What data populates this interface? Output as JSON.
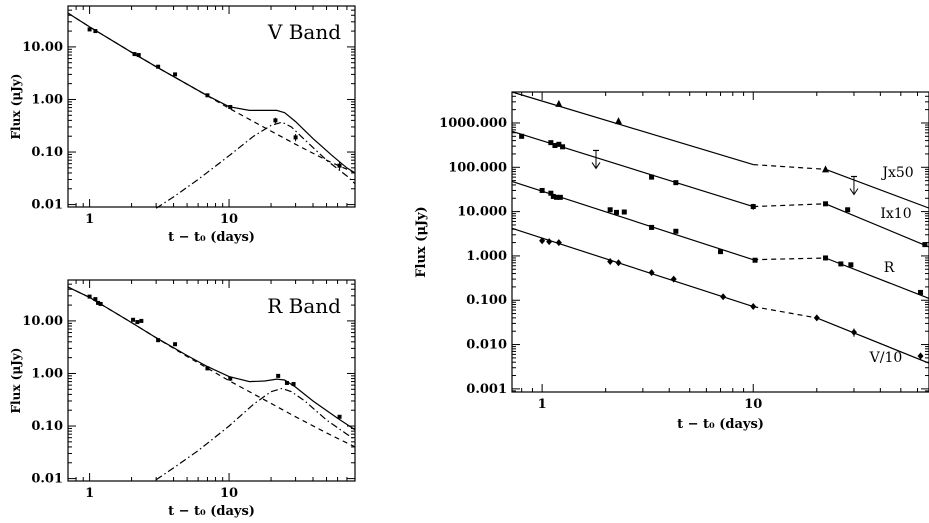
{
  "chart_data": [
    {
      "type": "line",
      "title": "V Band",
      "xlabel": "t − t₀ (days)",
      "ylabel": "Flux (μJy)",
      "xscale": "log",
      "yscale": "log",
      "xlim": [
        0.7,
        80
      ],
      "ylim": [
        0.009,
        60
      ],
      "xticks": [
        {
          "v": 1,
          "label": "1"
        },
        {
          "v": 10,
          "label": "10"
        }
      ],
      "yticks": [
        {
          "v": 0.01,
          "label": "0.01"
        },
        {
          "v": 0.1,
          "label": "0.10"
        },
        {
          "v": 1,
          "label": "1.00"
        },
        {
          "v": 10,
          "label": "10.00"
        }
      ],
      "points": [
        {
          "x": 1.0,
          "y": 21.5,
          "err": 0
        },
        {
          "x": 1.1,
          "y": 20.0,
          "err": 0
        },
        {
          "x": 2.1,
          "y": 7.3,
          "err": 0.4
        },
        {
          "x": 2.25,
          "y": 7.0,
          "err": 0.5
        },
        {
          "x": 3.1,
          "y": 4.2,
          "err": 0
        },
        {
          "x": 4.1,
          "y": 3.0,
          "err": 0
        },
        {
          "x": 7.0,
          "y": 1.2,
          "err": 0
        },
        {
          "x": 10.2,
          "y": 0.72,
          "err": 0.05
        },
        {
          "x": 21.5,
          "y": 0.4,
          "err": 0.05
        },
        {
          "x": 30.0,
          "y": 0.19,
          "err": 0.03
        },
        {
          "x": 62.0,
          "y": 0.055,
          "err": 0.01
        }
      ],
      "series": [
        {
          "name": "",
          "style": "solid",
          "values": [
            [
              0.7,
              44
            ],
            [
              1,
              24
            ],
            [
              2,
              7.9
            ],
            [
              3,
              4.2
            ],
            [
              5,
              1.95
            ],
            [
              7,
              1.18
            ],
            [
              10,
              0.73
            ],
            [
              14,
              0.62
            ],
            [
              18,
              0.62
            ],
            [
              22,
              0.62
            ],
            [
              25,
              0.56
            ],
            [
              30,
              0.38
            ],
            [
              40,
              0.18
            ],
            [
              55,
              0.085
            ],
            [
              70,
              0.05
            ],
            [
              80,
              0.04
            ]
          ]
        },
        {
          "name": "",
          "style": "dashed",
          "values": [
            [
              0.7,
              44
            ],
            [
              1,
              24
            ],
            [
              2,
              7.9
            ],
            [
              3,
              4.2
            ],
            [
              5,
              1.95
            ],
            [
              10,
              0.68
            ],
            [
              20,
              0.25
            ],
            [
              30,
              0.14
            ],
            [
              50,
              0.07
            ],
            [
              80,
              0.04
            ]
          ]
        },
        {
          "name": "",
          "style": "dashdot",
          "values": [
            [
              3,
              0.0085
            ],
            [
              4,
              0.014
            ],
            [
              6,
              0.03
            ],
            [
              10,
              0.085
            ],
            [
              15,
              0.2
            ],
            [
              20,
              0.32
            ],
            [
              24,
              0.37
            ],
            [
              28,
              0.3
            ],
            [
              35,
              0.17
            ],
            [
              50,
              0.07
            ],
            [
              70,
              0.035
            ],
            [
              80,
              0.025
            ]
          ]
        }
      ]
    },
    {
      "type": "line",
      "title": "R Band",
      "xlabel": "t − t₀ (days)",
      "ylabel": "Flux (μJy)",
      "xscale": "log",
      "yscale": "log",
      "xlim": [
        0.7,
        80
      ],
      "ylim": [
        0.009,
        60
      ],
      "xticks": [
        {
          "v": 1,
          "label": "1"
        },
        {
          "v": 10,
          "label": "10"
        }
      ],
      "yticks": [
        {
          "v": 0.01,
          "label": "0.01"
        },
        {
          "v": 0.1,
          "label": "0.10"
        },
        {
          "v": 1,
          "label": "1.00"
        },
        {
          "v": 10,
          "label": "10.00"
        }
      ],
      "points": [
        {
          "x": 1.0,
          "y": 29.0,
          "err": 0
        },
        {
          "x": 1.1,
          "y": 26.0,
          "err": 0
        },
        {
          "x": 1.15,
          "y": 22.0,
          "err": 0
        },
        {
          "x": 1.2,
          "y": 21.0,
          "err": 0
        },
        {
          "x": 2.05,
          "y": 10.5,
          "err": 0
        },
        {
          "x": 2.2,
          "y": 9.5,
          "err": 0
        },
        {
          "x": 2.35,
          "y": 10.0,
          "err": 0
        },
        {
          "x": 3.1,
          "y": 4.3,
          "err": 0
        },
        {
          "x": 4.1,
          "y": 3.6,
          "err": 0
        },
        {
          "x": 7.0,
          "y": 1.25,
          "err": 0.1
        },
        {
          "x": 10.2,
          "y": 0.8,
          "err": 0.08
        },
        {
          "x": 22.5,
          "y": 0.9,
          "err": 0
        },
        {
          "x": 26.0,
          "y": 0.66,
          "err": 0
        },
        {
          "x": 29.0,
          "y": 0.63,
          "err": 0
        },
        {
          "x": 62.0,
          "y": 0.15,
          "err": 0.01
        }
      ],
      "series": [
        {
          "name": "",
          "style": "solid",
          "values": [
            [
              0.7,
              44
            ],
            [
              1,
              28
            ],
            [
              2,
              9.3
            ],
            [
              3,
              4.8
            ],
            [
              5,
              2.2
            ],
            [
              7,
              1.35
            ],
            [
              10,
              0.87
            ],
            [
              14,
              0.7
            ],
            [
              18,
              0.72
            ],
            [
              22,
              0.78
            ],
            [
              25,
              0.75
            ],
            [
              30,
              0.55
            ],
            [
              40,
              0.3
            ],
            [
              60,
              0.14
            ],
            [
              80,
              0.085
            ]
          ]
        },
        {
          "name": "",
          "style": "dashed",
          "values": [
            [
              0.7,
              44
            ],
            [
              1,
              28
            ],
            [
              2,
              9.3
            ],
            [
              3,
              4.8
            ],
            [
              5,
              2.1
            ],
            [
              10,
              0.73
            ],
            [
              20,
              0.27
            ],
            [
              30,
              0.15
            ],
            [
              50,
              0.074
            ],
            [
              80,
              0.04
            ]
          ]
        },
        {
          "name": "",
          "style": "dashdot",
          "values": [
            [
              3,
              0.0095
            ],
            [
              4,
              0.016
            ],
            [
              6,
              0.034
            ],
            [
              10,
              0.1
            ],
            [
              15,
              0.26
            ],
            [
              20,
              0.45
            ],
            [
              24,
              0.52
            ],
            [
              28,
              0.45
            ],
            [
              35,
              0.3
            ],
            [
              50,
              0.13
            ],
            [
              70,
              0.07
            ],
            [
              80,
              0.055
            ]
          ]
        }
      ]
    },
    {
      "type": "line",
      "title": "",
      "xlabel": "t − t₀ (days)",
      "ylabel": "Flux (μJy)",
      "xscale": "log",
      "yscale": "log",
      "xlim": [
        0.72,
        68
      ],
      "ylim": [
        0.00085,
        5000
      ],
      "xticks": [
        {
          "v": 1,
          "label": "1"
        },
        {
          "v": 10,
          "label": "10"
        }
      ],
      "yticks": [
        {
          "v": 0.001,
          "label": "0.001"
        },
        {
          "v": 0.01,
          "label": "0.010"
        },
        {
          "v": 0.1,
          "label": "0.100"
        },
        {
          "v": 1,
          "label": "1.000"
        },
        {
          "v": 10,
          "label": "10.000"
        },
        {
          "v": 100,
          "label": "100.000"
        },
        {
          "v": 1000,
          "label": "1000.000"
        }
      ],
      "series": [
        {
          "name": "Jx50",
          "marker": "triangle",
          "fit": [
            [
              0.72,
              5000
            ],
            [
              10,
              115
            ]
          ],
          "bridge": [
            [
              10,
              115
            ],
            [
              22,
              90
            ]
          ],
          "tail": [
            [
              22,
              90
            ],
            [
              68,
              12
            ]
          ],
          "points": [
            {
              "x": 1.2,
              "y": 2700,
              "err": 0
            },
            {
              "x": 2.3,
              "y": 1100,
              "err": 0
            },
            {
              "x": 22,
              "y": 90,
              "err": 0
            }
          ],
          "upper_limits": [
            {
              "x": 30,
              "y": 62
            }
          ]
        },
        {
          "name": "Ix10",
          "marker": "square",
          "fit": [
            [
              0.72,
              650
            ],
            [
              10,
              13
            ]
          ],
          "bridge": [
            [
              10,
              13
            ],
            [
              22,
              15
            ]
          ],
          "tail": [
            [
              22,
              15
            ],
            [
              68,
              1.6
            ]
          ],
          "points": [
            {
              "x": 0.8,
              "y": 500,
              "err": 0
            },
            {
              "x": 1.1,
              "y": 360,
              "err": 0
            },
            {
              "x": 1.15,
              "y": 310,
              "err": 0
            },
            {
              "x": 1.2,
              "y": 330,
              "err": 0
            },
            {
              "x": 1.25,
              "y": 290,
              "err": 0
            },
            {
              "x": 3.3,
              "y": 60,
              "err": 0
            },
            {
              "x": 4.3,
              "y": 45,
              "err": 0
            },
            {
              "x": 10,
              "y": 13,
              "err": 2
            },
            {
              "x": 22,
              "y": 15,
              "err": 0
            },
            {
              "x": 28,
              "y": 11,
              "err": 0
            },
            {
              "x": 65,
              "y": 1.8,
              "err": 0.2
            }
          ],
          "upper_limits": [
            {
              "x": 1.8,
              "y": 240
            }
          ]
        },
        {
          "name": "R",
          "marker": "square",
          "fit": [
            [
              0.72,
              48
            ],
            [
              10,
              0.82
            ]
          ],
          "bridge": [
            [
              10,
              0.82
            ],
            [
              22,
              0.9
            ]
          ],
          "tail": [
            [
              22,
              0.9
            ],
            [
              68,
              0.11
            ]
          ],
          "points": [
            {
              "x": 1.0,
              "y": 30,
              "err": 0
            },
            {
              "x": 1.1,
              "y": 26,
              "err": 0
            },
            {
              "x": 1.13,
              "y": 22,
              "err": 0
            },
            {
              "x": 1.17,
              "y": 21,
              "err": 0
            },
            {
              "x": 1.22,
              "y": 21,
              "err": 0
            },
            {
              "x": 2.1,
              "y": 11,
              "err": 0
            },
            {
              "x": 2.25,
              "y": 9.6,
              "err": 0
            },
            {
              "x": 2.45,
              "y": 9.8,
              "err": 0
            },
            {
              "x": 3.3,
              "y": 4.4,
              "err": 0
            },
            {
              "x": 4.3,
              "y": 3.6,
              "err": 0
            },
            {
              "x": 7,
              "y": 1.25,
              "err": 0
            },
            {
              "x": 10.2,
              "y": 0.8,
              "err": 0
            },
            {
              "x": 22,
              "y": 0.9,
              "err": 0
            },
            {
              "x": 26,
              "y": 0.66,
              "err": 0
            },
            {
              "x": 29,
              "y": 0.63,
              "err": 0
            },
            {
              "x": 62,
              "y": 0.15,
              "err": 0
            }
          ]
        },
        {
          "name": "V/10",
          "marker": "diamond",
          "fit": [
            [
              0.72,
              4.2
            ],
            [
              10,
              0.072
            ]
          ],
          "bridge": [
            [
              10,
              0.072
            ],
            [
              20,
              0.04
            ]
          ],
          "tail": [
            [
              20,
              0.04
            ],
            [
              68,
              0.0038
            ]
          ],
          "points": [
            {
              "x": 1.0,
              "y": 2.2,
              "err": 0
            },
            {
              "x": 1.08,
              "y": 2.1,
              "err": 0
            },
            {
              "x": 1.2,
              "y": 2.0,
              "err": 0
            },
            {
              "x": 2.1,
              "y": 0.75,
              "err": 0
            },
            {
              "x": 2.3,
              "y": 0.7,
              "err": 0.1
            },
            {
              "x": 3.3,
              "y": 0.42,
              "err": 0
            },
            {
              "x": 4.2,
              "y": 0.3,
              "err": 0
            },
            {
              "x": 7.2,
              "y": 0.12,
              "err": 0
            },
            {
              "x": 10,
              "y": 0.072,
              "err": 0
            },
            {
              "x": 20,
              "y": 0.04,
              "err": 0
            },
            {
              "x": 30,
              "y": 0.019,
              "err": 0.004
            },
            {
              "x": 62,
              "y": 0.0055,
              "err": 0.001
            }
          ]
        }
      ]
    }
  ]
}
